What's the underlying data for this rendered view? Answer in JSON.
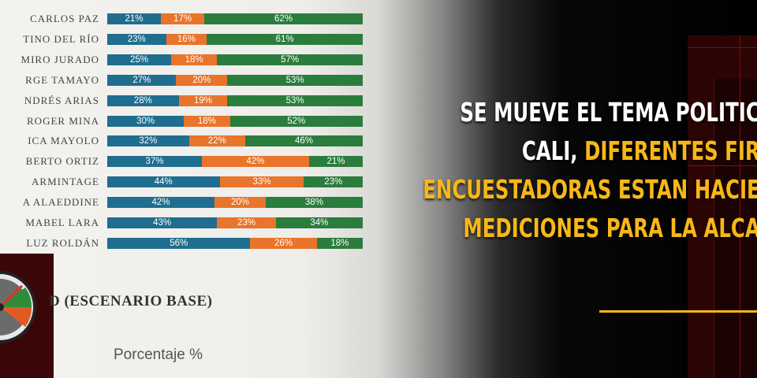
{
  "chart_data": {
    "type": "bar",
    "stacked": true,
    "orientation": "horizontal",
    "categories": [
      "CARLOS PAZ",
      "TINO DEL RÍO",
      "MIRO JURADO",
      "RGE TAMAYO",
      "NDRÉS ARIAS",
      "ROGER MINA",
      "ICA MAYOLO",
      "BERTO ORTIZ",
      "ARMINTAGE",
      "A ALAEDDINE",
      "MABEL LARA",
      "LUZ ROLDÁN"
    ],
    "series": [
      {
        "values": [
          21,
          23,
          25,
          27,
          28,
          30,
          32,
          37,
          44,
          42,
          43,
          56
        ],
        "color": "#1f6e8f"
      },
      {
        "values": [
          17,
          16,
          18,
          20,
          19,
          18,
          22,
          42,
          33,
          20,
          23,
          26
        ],
        "color": "#e9742b"
      },
      {
        "values": [
          62,
          61,
          57,
          53,
          53,
          52,
          46,
          21,
          23,
          38,
          34,
          18
        ],
        "color": "#2b7d3d"
      }
    ],
    "value_suffix": "%",
    "xlim": [
      0,
      100
    ],
    "subtitle": "D (ESCENARIO BASE)",
    "xlabel": "Porcentaje %"
  },
  "headline": {
    "lines": [
      [
        {
          "text": "SE MUEVE EL TEMA POLITIC",
          "color": "white"
        }
      ],
      [
        {
          "text": "CALI, ",
          "color": "white"
        },
        {
          "text": "DIFERENTES FIR",
          "color": "yellow"
        }
      ],
      [
        {
          "text": "ENCUESTADORAS ESTAN HACIE",
          "color": "yellow"
        }
      ],
      [
        {
          "text": "MEDICIONES PARA LA ALCA",
          "color": "yellow"
        }
      ]
    ]
  },
  "colors": {
    "accent_yellow": "#f7b718",
    "dark_red": "#3a0607"
  }
}
